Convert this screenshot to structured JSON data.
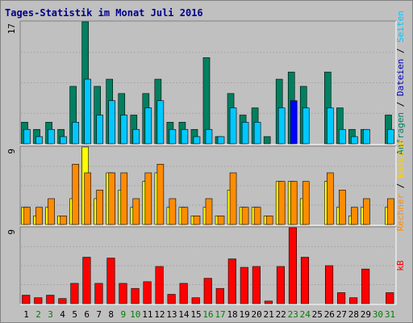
{
  "title": "Tages-Statistik im Monat Juli 2016",
  "colors": {
    "background": "#c0c0c0",
    "title": "#00008b",
    "anfragen": "#008060",
    "dateien": "#00c8ff",
    "seiten": "#ffd000",
    "besuche": "#ffff00",
    "rechner": "#ff8c00",
    "kb": "#ff0000",
    "weekday": "#000000",
    "weekend": "#008000",
    "highlight": "#0000ff"
  },
  "chart_data": [
    {
      "type": "bar",
      "panel": "top",
      "y_max_label": "17",
      "ylim": [
        0,
        17
      ],
      "categories": [
        "1",
        "2",
        "3",
        "4",
        "5",
        "6",
        "7",
        "8",
        "9",
        "10",
        "11",
        "12",
        "13",
        "14",
        "15",
        "16",
        "17",
        "18",
        "19",
        "20",
        "21",
        "22",
        "23",
        "24",
        "25",
        "26",
        "27",
        "28",
        "29",
        "30",
        "31"
      ],
      "series": [
        {
          "name": "Anfragen",
          "values": [
            3,
            2,
            3,
            2,
            8,
            17,
            8,
            9,
            7,
            4,
            7,
            9,
            3,
            3,
            2,
            12,
            1,
            7,
            4,
            5,
            1,
            9,
            10,
            8,
            0,
            10,
            5,
            2,
            2,
            0,
            4
          ]
        },
        {
          "name": "Dateien",
          "values": [
            2,
            1,
            2,
            1,
            3,
            9,
            4,
            6,
            4,
            2,
            5,
            6,
            2,
            2,
            1,
            2,
            1,
            5,
            3,
            3,
            0,
            5,
            6,
            5,
            0,
            5,
            2,
            1,
            2,
            0,
            2
          ]
        }
      ],
      "legend_side": "right",
      "highlight_day": "23"
    },
    {
      "type": "bar",
      "panel": "middle",
      "y_max_label": "9",
      "ylim": [
        0,
        9
      ],
      "categories": [
        "1",
        "2",
        "3",
        "4",
        "5",
        "6",
        "7",
        "8",
        "9",
        "10",
        "11",
        "12",
        "13",
        "14",
        "15",
        "16",
        "17",
        "18",
        "19",
        "20",
        "21",
        "22",
        "23",
        "24",
        "25",
        "26",
        "27",
        "28",
        "29",
        "30",
        "31"
      ],
      "series": [
        {
          "name": "Rechner",
          "values": [
            2,
            2,
            3,
            1,
            7,
            6,
            4,
            6,
            6,
            3,
            6,
            7,
            3,
            2,
            1,
            3,
            1,
            6,
            2,
            2,
            1,
            5,
            5,
            5,
            0,
            6,
            4,
            2,
            3,
            0,
            3
          ]
        },
        {
          "name": "Besuche",
          "values": [
            2,
            1,
            2,
            1,
            3,
            9,
            3,
            6,
            4,
            2,
            5,
            6,
            2,
            2,
            1,
            2,
            1,
            4,
            2,
            2,
            1,
            5,
            5,
            3,
            0,
            5,
            2,
            1,
            2,
            0,
            2
          ]
        },
        {
          "name": "Seiten",
          "values": [
            0,
            0,
            0,
            0,
            0,
            0,
            0,
            0,
            0,
            0,
            0,
            0,
            0,
            0,
            0,
            0,
            0,
            0,
            0,
            0,
            0,
            0,
            0,
            0,
            0,
            0,
            0,
            0,
            0,
            0,
            0
          ]
        }
      ],
      "legend_side": "right"
    },
    {
      "type": "bar",
      "panel": "bottom",
      "y_max_label": "9",
      "ylim": [
        0,
        9
      ],
      "categories": [
        "1",
        "2",
        "3",
        "4",
        "5",
        "6",
        "7",
        "8",
        "9",
        "10",
        "11",
        "12",
        "13",
        "14",
        "15",
        "16",
        "17",
        "18",
        "19",
        "20",
        "21",
        "22",
        "23",
        "24",
        "25",
        "26",
        "27",
        "28",
        "29",
        "30",
        "31"
      ],
      "series": [
        {
          "name": "kB",
          "values": [
            1,
            0.7,
            1,
            0.6,
            2.4,
            5.5,
            2.4,
            5.4,
            2.4,
            1.8,
            2.6,
            4.4,
            1.1,
            2.4,
            0.7,
            3,
            1.8,
            5.3,
            4.3,
            4.4,
            0.3,
            4.4,
            9,
            5.5,
            0,
            4.5,
            1.3,
            0.7,
            4.1,
            0,
            1.3
          ]
        }
      ],
      "legend_side": "right"
    }
  ],
  "x_labels": [
    {
      "day": "1",
      "weekend": false
    },
    {
      "day": "2",
      "weekend": true
    },
    {
      "day": "3",
      "weekend": true
    },
    {
      "day": "4",
      "weekend": false
    },
    {
      "day": "5",
      "weekend": false
    },
    {
      "day": "6",
      "weekend": false
    },
    {
      "day": "7",
      "weekend": false
    },
    {
      "day": "8",
      "weekend": false
    },
    {
      "day": "9",
      "weekend": true
    },
    {
      "day": "10",
      "weekend": true
    },
    {
      "day": "11",
      "weekend": false
    },
    {
      "day": "12",
      "weekend": false
    },
    {
      "day": "13",
      "weekend": false
    },
    {
      "day": "14",
      "weekend": false
    },
    {
      "day": "15",
      "weekend": false
    },
    {
      "day": "16",
      "weekend": true
    },
    {
      "day": "17",
      "weekend": true
    },
    {
      "day": "18",
      "weekend": false
    },
    {
      "day": "19",
      "weekend": false
    },
    {
      "day": "20",
      "weekend": false
    },
    {
      "day": "21",
      "weekend": false
    },
    {
      "day": "22",
      "weekend": false
    },
    {
      "day": "23",
      "weekend": true
    },
    {
      "day": "24",
      "weekend": true
    },
    {
      "day": "25",
      "weekend": false
    },
    {
      "day": "26",
      "weekend": false
    },
    {
      "day": "27",
      "weekend": false
    },
    {
      "day": "28",
      "weekend": false
    },
    {
      "day": "29",
      "weekend": false
    },
    {
      "day": "30",
      "weekend": true
    },
    {
      "day": "31",
      "weekend": true
    }
  ],
  "right_labels": {
    "top": {
      "anfragen": "Anfragen",
      "sep1": " / ",
      "dateien": "Dateien",
      "sep2": " / ",
      "seiten": "Seiten"
    },
    "middle": {
      "besuche": "Besuche",
      "sep": " / ",
      "rechner": "Rechner"
    },
    "bottom": {
      "kb": "kB"
    }
  }
}
